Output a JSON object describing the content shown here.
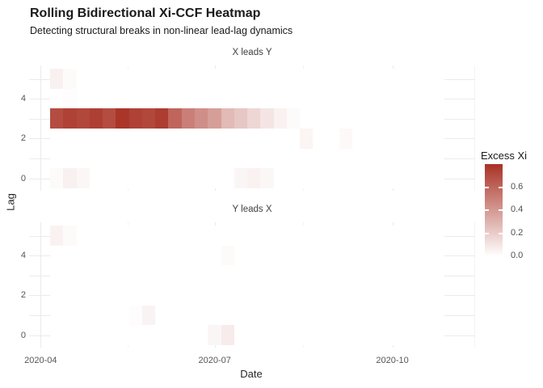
{
  "chart_data": {
    "type": "heatmap",
    "title": "Rolling Bidirectional Xi-CCF Heatmap",
    "subtitle": "Detecting structural breaks in non-linear lead-lag dynamics",
    "xlabel": "Date",
    "ylabel": "Lag",
    "x_ticks": [
      "2020-04",
      "2020-07",
      "2020-10"
    ],
    "y_ticks": [
      4,
      2,
      0
    ],
    "lags": [
      0,
      1,
      2,
      3,
      4,
      5
    ],
    "columns": [
      "2020-04-06",
      "2020-04-13",
      "2020-04-20",
      "2020-04-27",
      "2020-05-04",
      "2020-05-11",
      "2020-05-18",
      "2020-05-25",
      "2020-06-01",
      "2020-06-08",
      "2020-06-15",
      "2020-06-22",
      "2020-06-29",
      "2020-07-06",
      "2020-07-13",
      "2020-07-20",
      "2020-07-27",
      "2020-08-03",
      "2020-08-10",
      "2020-08-17",
      "2020-08-24",
      "2020-08-31",
      "2020-09-07",
      "2020-09-14",
      "2020-09-21",
      "2020-09-28",
      "2020-10-05",
      "2020-10-12",
      "2020-10-19",
      "2020-10-26"
    ],
    "value_domain": [
      0,
      0.8
    ],
    "legend": {
      "title": "Excess Xi",
      "tick_labels": [
        "0.6",
        "0.4",
        "0.2",
        "0.0"
      ],
      "tick_values": [
        0.6,
        0.4,
        0.2,
        0.0
      ],
      "min": 0,
      "max": 0.8,
      "low_color": "#ffffff",
      "high_color": "#a93226"
    },
    "facets": [
      {
        "label": "X leads Y",
        "cells": [
          [
            5,
            0,
            0.055
          ],
          [
            5,
            1,
            0.02
          ],
          [
            4,
            1,
            0.012
          ],
          [
            3,
            0,
            0.7
          ],
          [
            3,
            1,
            0.74
          ],
          [
            3,
            2,
            0.72
          ],
          [
            3,
            3,
            0.75
          ],
          [
            3,
            4,
            0.7
          ],
          [
            3,
            5,
            0.79
          ],
          [
            3,
            6,
            0.74
          ],
          [
            3,
            7,
            0.72
          ],
          [
            3,
            8,
            0.76
          ],
          [
            3,
            9,
            0.6
          ],
          [
            3,
            10,
            0.5
          ],
          [
            3,
            11,
            0.44
          ],
          [
            3,
            12,
            0.38
          ],
          [
            3,
            13,
            0.27
          ],
          [
            3,
            14,
            0.22
          ],
          [
            3,
            15,
            0.16
          ],
          [
            3,
            16,
            0.1
          ],
          [
            3,
            17,
            0.05
          ],
          [
            3,
            18,
            0.02
          ],
          [
            2,
            19,
            0.04
          ],
          [
            2,
            22,
            0.025
          ],
          [
            0,
            0,
            0.02
          ],
          [
            0,
            1,
            0.055
          ],
          [
            0,
            2,
            0.03
          ],
          [
            0,
            14,
            0.035
          ],
          [
            0,
            15,
            0.05
          ],
          [
            0,
            16,
            0.03
          ]
        ]
      },
      {
        "label": "Y leads X",
        "cells": [
          [
            5,
            0,
            0.05
          ],
          [
            5,
            1,
            0.018
          ],
          [
            4,
            13,
            0.02
          ],
          [
            1,
            6,
            0.012
          ],
          [
            1,
            7,
            0.045
          ],
          [
            0,
            12,
            0.035
          ],
          [
            0,
            13,
            0.075
          ]
        ]
      }
    ]
  }
}
